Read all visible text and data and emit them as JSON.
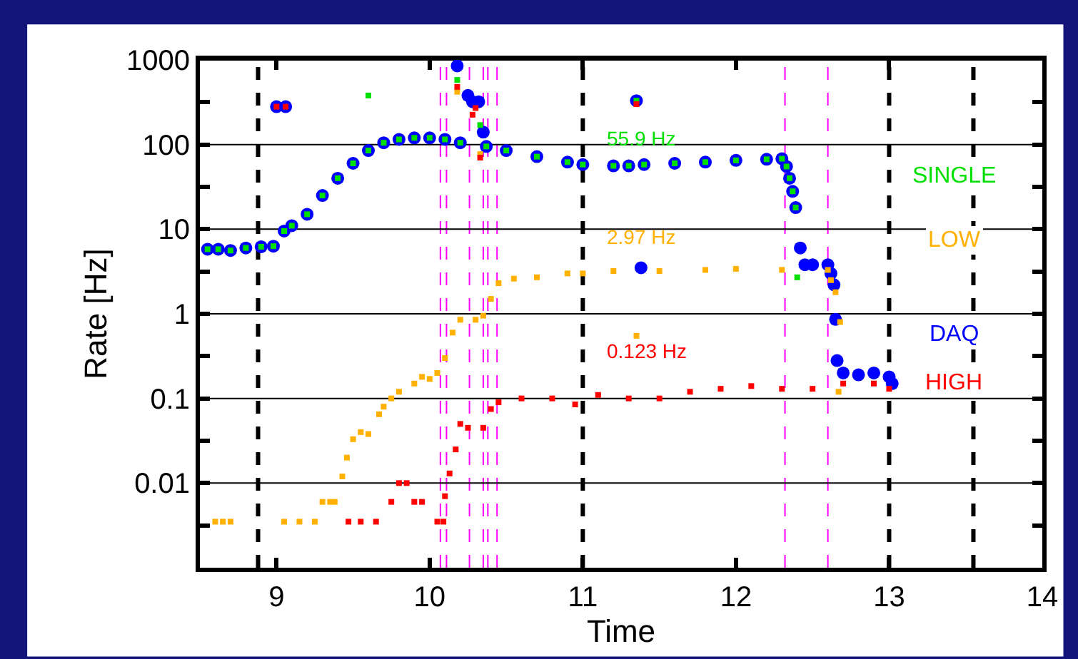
{
  "chart_data": {
    "type": "scatter",
    "xlabel": "Time",
    "ylabel": "Rate [Hz]",
    "log": "y",
    "grid": "y",
    "xlim": [
      8.5,
      14
    ],
    "xticks": [
      9,
      10,
      11,
      12,
      13,
      14
    ],
    "ylim": [
      0.001,
      1000
    ],
    "yticks": [
      {
        "value": 0.00316,
        "label": null
      },
      0.01,
      {
        "value": 0.0316,
        "label": null
      },
      0.1,
      {
        "value": 0.316,
        "label": null
      },
      1,
      {
        "value": 3.16,
        "label": null
      },
      10,
      {
        "value": 31.6,
        "label": null
      },
      100,
      {
        "value": 316,
        "label": null
      },
      1000
    ],
    "series": [
      {
        "name": "DAQ",
        "color": "#0000ff",
        "marker": "circle",
        "x": [
          8.55,
          8.62,
          8.7,
          8.8,
          8.9,
          8.98,
          9.0,
          9.06,
          9.05,
          9.1,
          9.2,
          9.3,
          9.4,
          9.5,
          9.6,
          9.7,
          9.8,
          9.9,
          10.0,
          10.1,
          10.18,
          10.2,
          10.25,
          10.28,
          10.32,
          10.35,
          10.37,
          10.5,
          10.7,
          10.9,
          11.0,
          11.2,
          11.3,
          11.35,
          11.38,
          11.4,
          11.6,
          11.8,
          12.0,
          12.2,
          12.3,
          12.33,
          12.35,
          12.37,
          12.39,
          12.42,
          12.45,
          12.5,
          12.6,
          12.62,
          12.64,
          12.65,
          12.66,
          12.7,
          12.8,
          12.9,
          13.0,
          13.02
        ],
        "values": [
          5.8,
          5.8,
          5.6,
          6.0,
          6.2,
          6.3,
          280,
          280,
          9.5,
          11,
          15,
          25,
          40,
          60,
          85,
          105,
          115,
          120,
          120,
          115,
          850,
          105,
          380,
          320,
          320,
          140,
          95,
          85,
          72,
          62,
          58,
          56,
          56,
          330,
          3.5,
          58,
          60,
          62,
          65,
          67,
          68,
          55,
          40,
          28,
          18,
          6,
          3.8,
          3.8,
          3.8,
          3,
          2.2,
          0.86,
          0.28,
          0.2,
          0.19,
          0.2,
          0.18,
          0.15
        ]
      },
      {
        "name": "SINGLE",
        "color": "#00e000",
        "marker": "square",
        "x": [
          8.55,
          8.62,
          8.7,
          8.8,
          8.9,
          8.98,
          9.05,
          9.1,
          9.2,
          9.3,
          9.4,
          9.5,
          9.6,
          9.6,
          9.7,
          9.8,
          9.9,
          10.0,
          10.1,
          10.18,
          10.2,
          10.33,
          10.37,
          10.5,
          10.7,
          10.9,
          11.0,
          11.2,
          11.3,
          11.35,
          11.4,
          11.6,
          11.8,
          12.0,
          12.2,
          12.3,
          12.33,
          12.35,
          12.37,
          12.39,
          12.4
        ],
        "values": [
          5.8,
          5.8,
          5.6,
          6.0,
          6.2,
          6.3,
          9.5,
          11,
          15,
          25,
          40,
          60,
          85,
          380,
          105,
          115,
          120,
          120,
          115,
          580,
          105,
          170,
          95,
          85,
          72,
          62,
          58,
          56,
          56,
          330,
          58,
          60,
          62,
          65,
          67,
          68,
          55,
          40,
          28,
          18,
          2.7
        ]
      },
      {
        "name": "LOW",
        "color": "#ffb000",
        "marker": "square",
        "x": [
          8.6,
          8.65,
          8.7,
          9.05,
          9.15,
          9.25,
          9.3,
          9.35,
          9.38,
          9.43,
          9.46,
          9.5,
          9.55,
          9.6,
          9.67,
          9.7,
          9.75,
          9.8,
          9.9,
          9.95,
          10.0,
          10.05,
          10.1,
          10.15,
          10.18,
          10.2,
          10.3,
          10.33,
          10.35,
          10.4,
          10.45,
          10.55,
          10.7,
          10.9,
          11.0,
          11.2,
          11.35,
          11.5,
          11.8,
          12.0,
          12.3,
          12.6,
          12.62,
          12.65,
          12.67,
          12.68
        ],
        "values": [
          0.0035,
          0.0035,
          0.0035,
          0.0035,
          0.0035,
          0.0035,
          0.006,
          0.006,
          0.006,
          0.012,
          0.02,
          0.033,
          0.04,
          0.038,
          0.065,
          0.08,
          0.1,
          0.12,
          0.15,
          0.18,
          0.17,
          0.2,
          0.3,
          0.6,
          420,
          0.85,
          0.85,
          77,
          0.95,
          1.5,
          2.3,
          2.6,
          2.7,
          3.0,
          3.0,
          3.2,
          0.55,
          3.2,
          3.3,
          3.4,
          3.3,
          3.3,
          2.5,
          1.8,
          0.12,
          0.8
        ]
      },
      {
        "name": "HIGH",
        "color": "#ff0000",
        "marker": "square",
        "x": [
          9.0,
          9.06,
          9.47,
          9.55,
          9.65,
          9.75,
          9.8,
          9.85,
          9.9,
          9.95,
          10.05,
          10.09,
          10.1,
          10.13,
          10.17,
          10.18,
          10.2,
          10.25,
          10.28,
          10.3,
          10.33,
          10.35,
          10.4,
          10.45,
          10.6,
          10.8,
          10.95,
          11.1,
          11.3,
          11.35,
          11.5,
          11.7,
          11.9,
          12.1,
          12.3,
          12.5,
          12.7,
          12.9,
          13.0
        ],
        "values": [
          280,
          280,
          0.0035,
          0.0035,
          0.0035,
          0.006,
          0.01,
          0.01,
          0.006,
          0.006,
          0.0035,
          0.0035,
          0.007,
          0.013,
          0.025,
          480,
          0.05,
          0.045,
          225,
          270,
          70,
          0.045,
          0.075,
          0.09,
          0.1,
          0.1,
          0.085,
          0.11,
          0.1,
          300,
          0.1,
          0.12,
          0.13,
          0.14,
          0.13,
          0.13,
          0.15,
          0.15,
          0.13
        ]
      }
    ],
    "ref_lines": [
      {
        "axis": "x",
        "value": 8.88,
        "color": "#000000",
        "line_style": "dashed"
      },
      {
        "axis": "x",
        "value": 11,
        "color": "#000000",
        "line_style": "dashed"
      },
      {
        "axis": "x",
        "value": 13,
        "color": "#000000",
        "line_style": "dashed"
      },
      {
        "axis": "x",
        "value": 13.55,
        "color": "#000000",
        "line_style": "dashed"
      },
      {
        "axis": "x",
        "value": 10.07,
        "color": "#ff00ff",
        "line_style": "dashed"
      },
      {
        "axis": "x",
        "value": 10.11,
        "color": "#ff00ff",
        "line_style": "dashed"
      },
      {
        "axis": "x",
        "value": 10.26,
        "color": "#ff00ff",
        "line_style": "dashed"
      },
      {
        "axis": "x",
        "value": 10.35,
        "color": "#ff00ff",
        "line_style": "dashed"
      },
      {
        "axis": "x",
        "value": 10.38,
        "color": "#ff00ff",
        "line_style": "dashed"
      },
      {
        "axis": "x",
        "value": 10.44,
        "color": "#ff00ff",
        "line_style": "dashed"
      },
      {
        "axis": "x",
        "value": 12.32,
        "color": "#ff00ff",
        "line_style": "dashed"
      },
      {
        "axis": "x",
        "value": 12.6,
        "color": "#ff00ff",
        "line_style": "dashed"
      }
    ],
    "annotations": [
      "55.9 Hz",
      "2.97 Hz",
      "0.123 Hz"
    ]
  }
}
